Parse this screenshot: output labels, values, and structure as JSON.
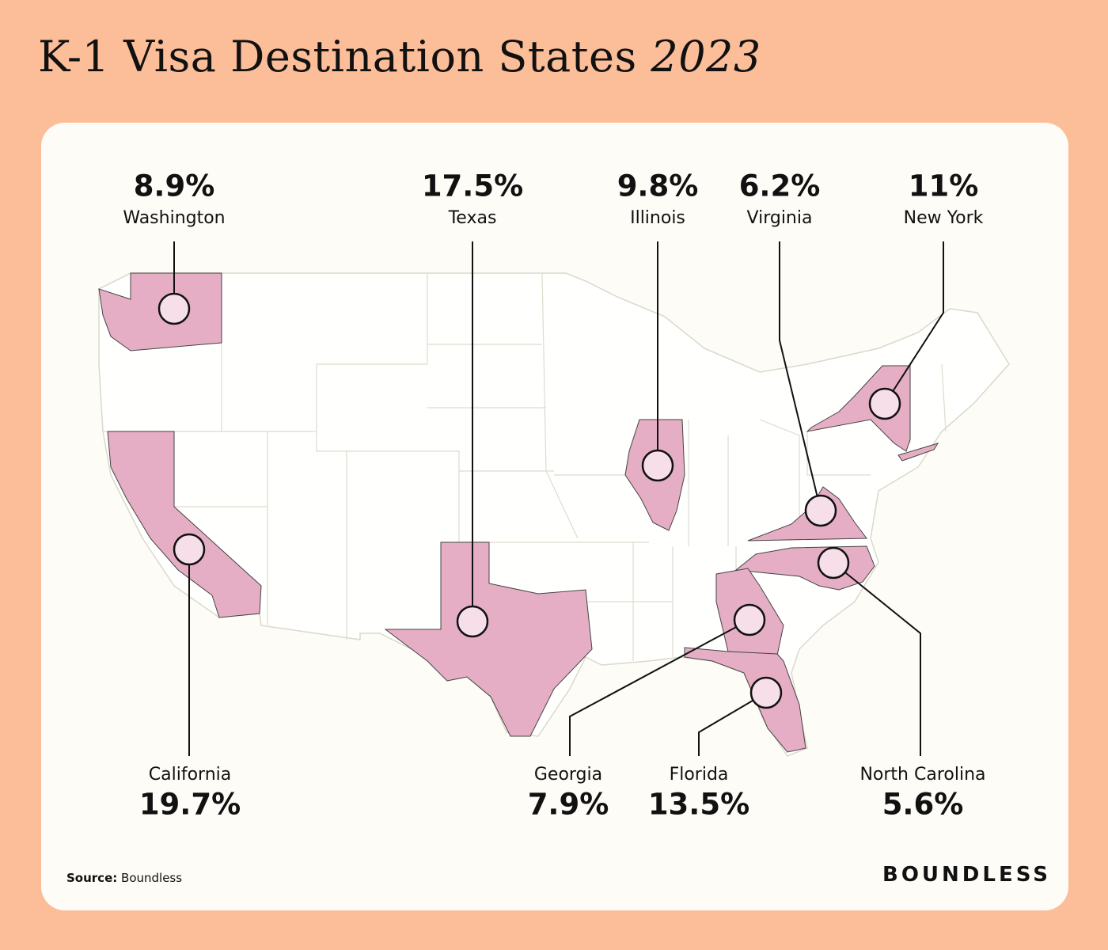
{
  "title": "K-1 Visa Destination States",
  "title_year": "2023",
  "states": [
    {
      "name": "Washington",
      "value": "8.9%"
    },
    {
      "name": "Texas",
      "value": "17.5%"
    },
    {
      "name": "Illinois",
      "value": "9.8%"
    },
    {
      "name": "Virginia",
      "value": "6.2%"
    },
    {
      "name": "New York",
      "value": "11%"
    },
    {
      "name": "California",
      "value": "19.7%"
    },
    {
      "name": "Georgia",
      "value": "7.9%"
    },
    {
      "name": "Florida",
      "value": "13.5%"
    },
    {
      "name": "North Carolina",
      "value": "5.6%"
    }
  ],
  "source_label": "Source:",
  "source": "Boundless",
  "brand": "BOUNDLESS"
}
